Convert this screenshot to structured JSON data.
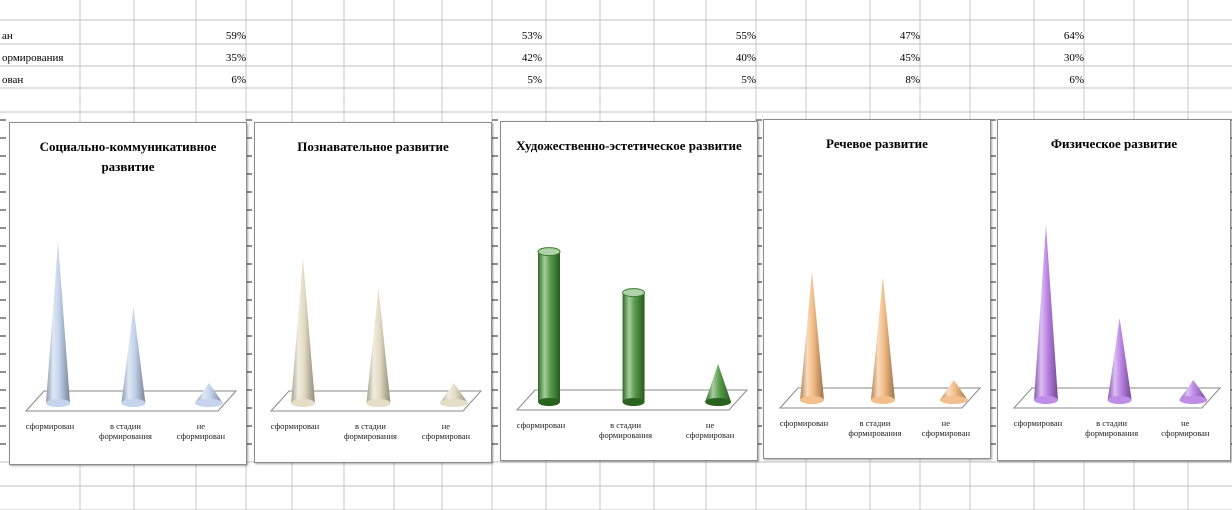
{
  "rows": [
    {
      "label": "ан",
      "values": [
        "59%",
        "53%",
        "55%",
        "47%",
        "64%"
      ]
    },
    {
      "label": "ормирования",
      "values": [
        "35%",
        "42%",
        "40%",
        "45%",
        "30%"
      ]
    },
    {
      "label": "ован",
      "values": [
        "6%",
        "5%",
        "5%",
        "8%",
        "6%"
      ]
    }
  ],
  "chart_data": [
    {
      "type": "bar",
      "title": "Социально-коммуникативное развитие",
      "categories": [
        "сформирован",
        "в стадии формирования",
        "не сформирован"
      ],
      "values": [
        59,
        35,
        6
      ],
      "colors": [
        "#b8cbe8",
        "#b8cbe8",
        "#b8cbe8"
      ],
      "shape": "cone"
    },
    {
      "type": "bar",
      "title": "Познавательное развитие",
      "categories": [
        "сформирован",
        "в стадии формирования",
        "не сформирован"
      ],
      "values": [
        53,
        42,
        5
      ],
      "colors": [
        "#ded5b8",
        "#ded5b8",
        "#ded5b8"
      ],
      "shape": "cone"
    },
    {
      "type": "bar",
      "title": "Художественно-эстетическое развитие",
      "categories": [
        "сформирован",
        "в стадии формирования",
        "не сформирован"
      ],
      "values": [
        55,
        40,
        5
      ],
      "colors": [
        "#3c8c2c",
        "#3c8c2c",
        "#3c8c2c"
      ],
      "shape": "cylinder"
    },
    {
      "type": "bar",
      "title": "Речевое развитие",
      "categories": [
        "сформирован",
        "в стадии формирования",
        "не сформирован"
      ],
      "values": [
        47,
        45,
        8
      ],
      "colors": [
        "#f0b070",
        "#f0b070",
        "#f0b070"
      ],
      "shape": "cone"
    },
    {
      "type": "bar",
      "title": "Физическое развитие",
      "categories": [
        "сформирован",
        "в стадии формирования",
        "не сформирован"
      ],
      "values": [
        64,
        30,
        6
      ],
      "colors": [
        "#b070e0",
        "#b070e0",
        "#b070e0"
      ],
      "shape": "cone"
    }
  ]
}
